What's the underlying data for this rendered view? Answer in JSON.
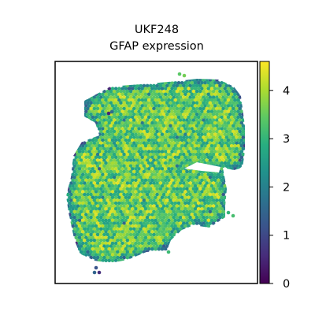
{
  "chart_data": {
    "type": "scatter",
    "subtype": "spatial-hexbin",
    "title_lines": [
      "UKF248",
      "GFAP expression"
    ],
    "xlabel": "",
    "ylabel": "",
    "axis_ticks_visible": false,
    "grid": false,
    "colormap": "viridis",
    "colorbar": {
      "position": "right",
      "range": [
        0,
        4.6
      ],
      "ticks": [
        0,
        1,
        2,
        3,
        4
      ],
      "tick_labels": [
        "0",
        "1",
        "2",
        "3",
        "4"
      ]
    },
    "value_distribution": {
      "typical_range": [
        2.5,
        4.4
      ],
      "low_values_at_tissue_edges": true
    },
    "colors": {
      "viridis_low": "#440154",
      "viridis_mid": "#21918c",
      "viridis_high": "#fde725",
      "frame": "#000000"
    }
  }
}
